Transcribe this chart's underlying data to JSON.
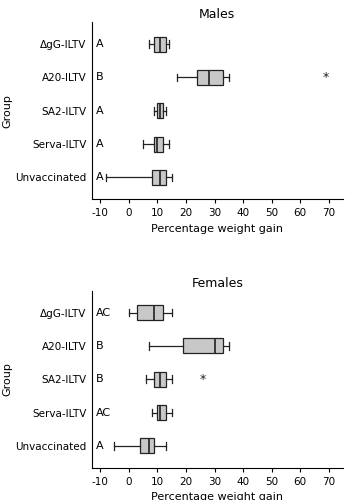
{
  "males": {
    "title": "Males",
    "xlabel": "Percentage weight gain",
    "ylabel": "Group",
    "groups": [
      "ΔgG-ILTV",
      "A20-ILTV",
      "SA2-ILTV",
      "Serva-ILTV",
      "Unvaccinated"
    ],
    "letters": [
      "A",
      "B",
      "A",
      "A",
      "A"
    ],
    "boxplot_stats": [
      {
        "whislo": 7,
        "q1": 9,
        "med": 11,
        "q3": 13,
        "whishi": 14,
        "fliers": []
      },
      {
        "whislo": 17,
        "q1": 24,
        "med": 28,
        "q3": 33,
        "whishi": 35,
        "fliers": [
          69
        ]
      },
      {
        "whislo": 9,
        "q1": 10,
        "med": 11,
        "q3": 12,
        "whishi": 13,
        "fliers": []
      },
      {
        "whislo": 5,
        "q1": 9,
        "med": 10,
        "q3": 12,
        "whishi": 14,
        "fliers": []
      },
      {
        "whislo": -8,
        "q1": 8,
        "med": 11,
        "q3": 13,
        "whishi": 15,
        "fliers": []
      }
    ],
    "xlim": [
      -13,
      75
    ],
    "xticks": [
      -10,
      0,
      10,
      20,
      30,
      40,
      50,
      60,
      70
    ]
  },
  "females": {
    "title": "Females",
    "xlabel": "Percentage weight gain",
    "ylabel": "Group",
    "groups": [
      "ΔgG-ILTV",
      "A20-ILTV",
      "SA2-ILTV",
      "Serva-ILTV",
      "Unvaccinated"
    ],
    "letters": [
      "AC",
      "B",
      "B",
      "AC",
      "A"
    ],
    "boxplot_stats": [
      {
        "whislo": 0,
        "q1": 3,
        "med": 9,
        "q3": 12,
        "whishi": 15,
        "fliers": []
      },
      {
        "whislo": 7,
        "q1": 19,
        "med": 30,
        "q3": 33,
        "whishi": 35,
        "fliers": []
      },
      {
        "whislo": 6,
        "q1": 9,
        "med": 11,
        "q3": 13,
        "whishi": 15,
        "fliers": [
          26
        ]
      },
      {
        "whislo": 8,
        "q1": 10,
        "med": 11,
        "q3": 13,
        "whishi": 15,
        "fliers": []
      },
      {
        "whislo": -5,
        "q1": 4,
        "med": 7,
        "q3": 9,
        "whishi": 13,
        "fliers": []
      }
    ],
    "xlim": [
      -13,
      75
    ],
    "xticks": [
      -10,
      0,
      10,
      20,
      30,
      40,
      50,
      60,
      70
    ]
  },
  "box_facecolor": "#c8c8c8",
  "box_edgecolor": "#222222",
  "median_color": "#222222",
  "whisker_color": "#222222",
  "cap_color": "#222222",
  "flier_color": "#222222",
  "letter_fontsize": 8,
  "title_fontsize": 9,
  "label_fontsize": 8,
  "tick_fontsize": 7.5
}
